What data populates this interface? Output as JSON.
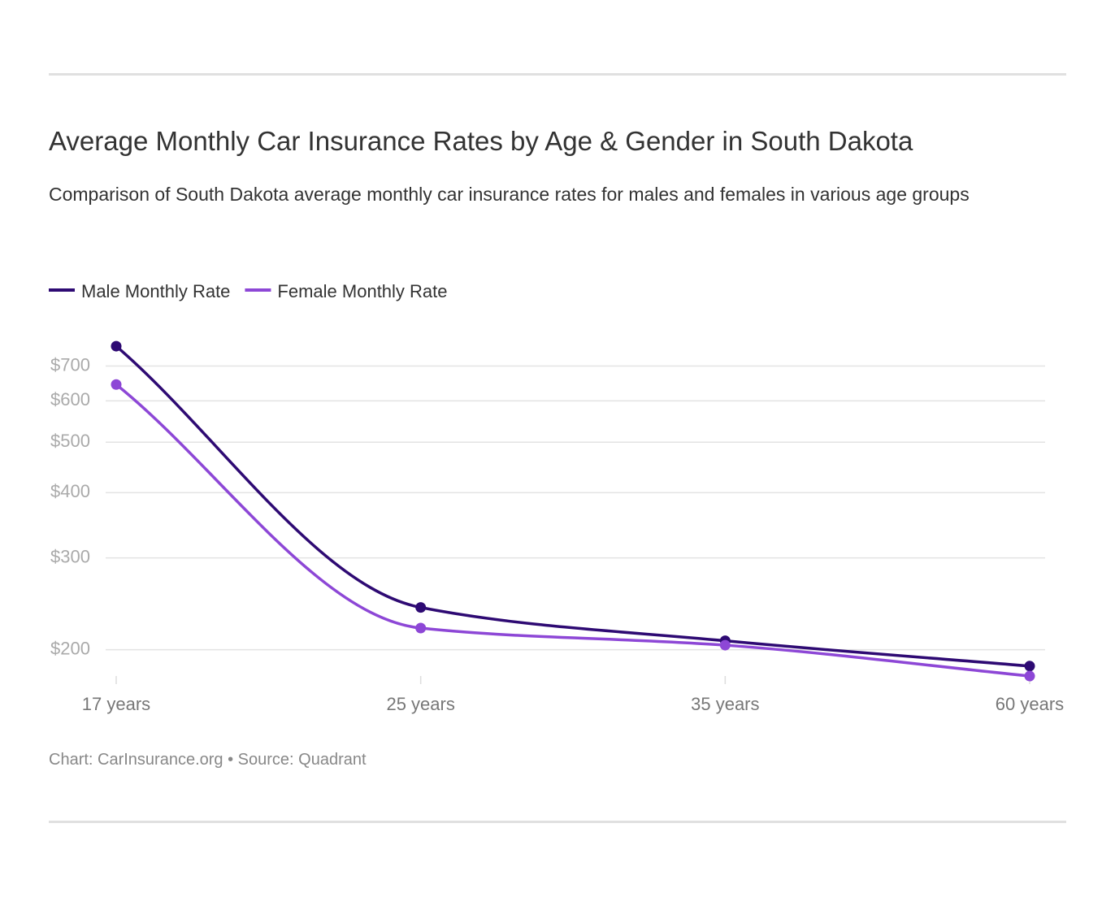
{
  "chart_data": {
    "type": "line",
    "title": "Average Monthly Car Insurance Rates by Age & Gender in South Dakota",
    "subtitle": "Comparison of South Dakota average monthly car insurance rates for males and females in various age groups",
    "footer": "Chart: CarInsurance.org • Source: Quadrant",
    "categories": [
      "17 years",
      "25 years",
      "35 years",
      "60 years"
    ],
    "series": [
      {
        "name": "Male Monthly Rate",
        "color": "#2e0a73",
        "values": [
          764,
          241,
          208,
          186
        ]
      },
      {
        "name": "Female Monthly Rate",
        "color": "#8d47d6",
        "values": [
          645,
          220,
          204,
          178
        ]
      }
    ],
    "ylim": [
      173,
      795
    ],
    "yticks": [
      {
        "value": 200,
        "label": "$200"
      },
      {
        "value": 300,
        "label": "$300"
      },
      {
        "value": 400,
        "label": "$400"
      },
      {
        "value": 500,
        "label": "$500"
      },
      {
        "value": 600,
        "label": "$600"
      },
      {
        "value": 700,
        "label": "$700"
      }
    ],
    "log_scale": true,
    "grid": true,
    "legend": "top-left"
  }
}
